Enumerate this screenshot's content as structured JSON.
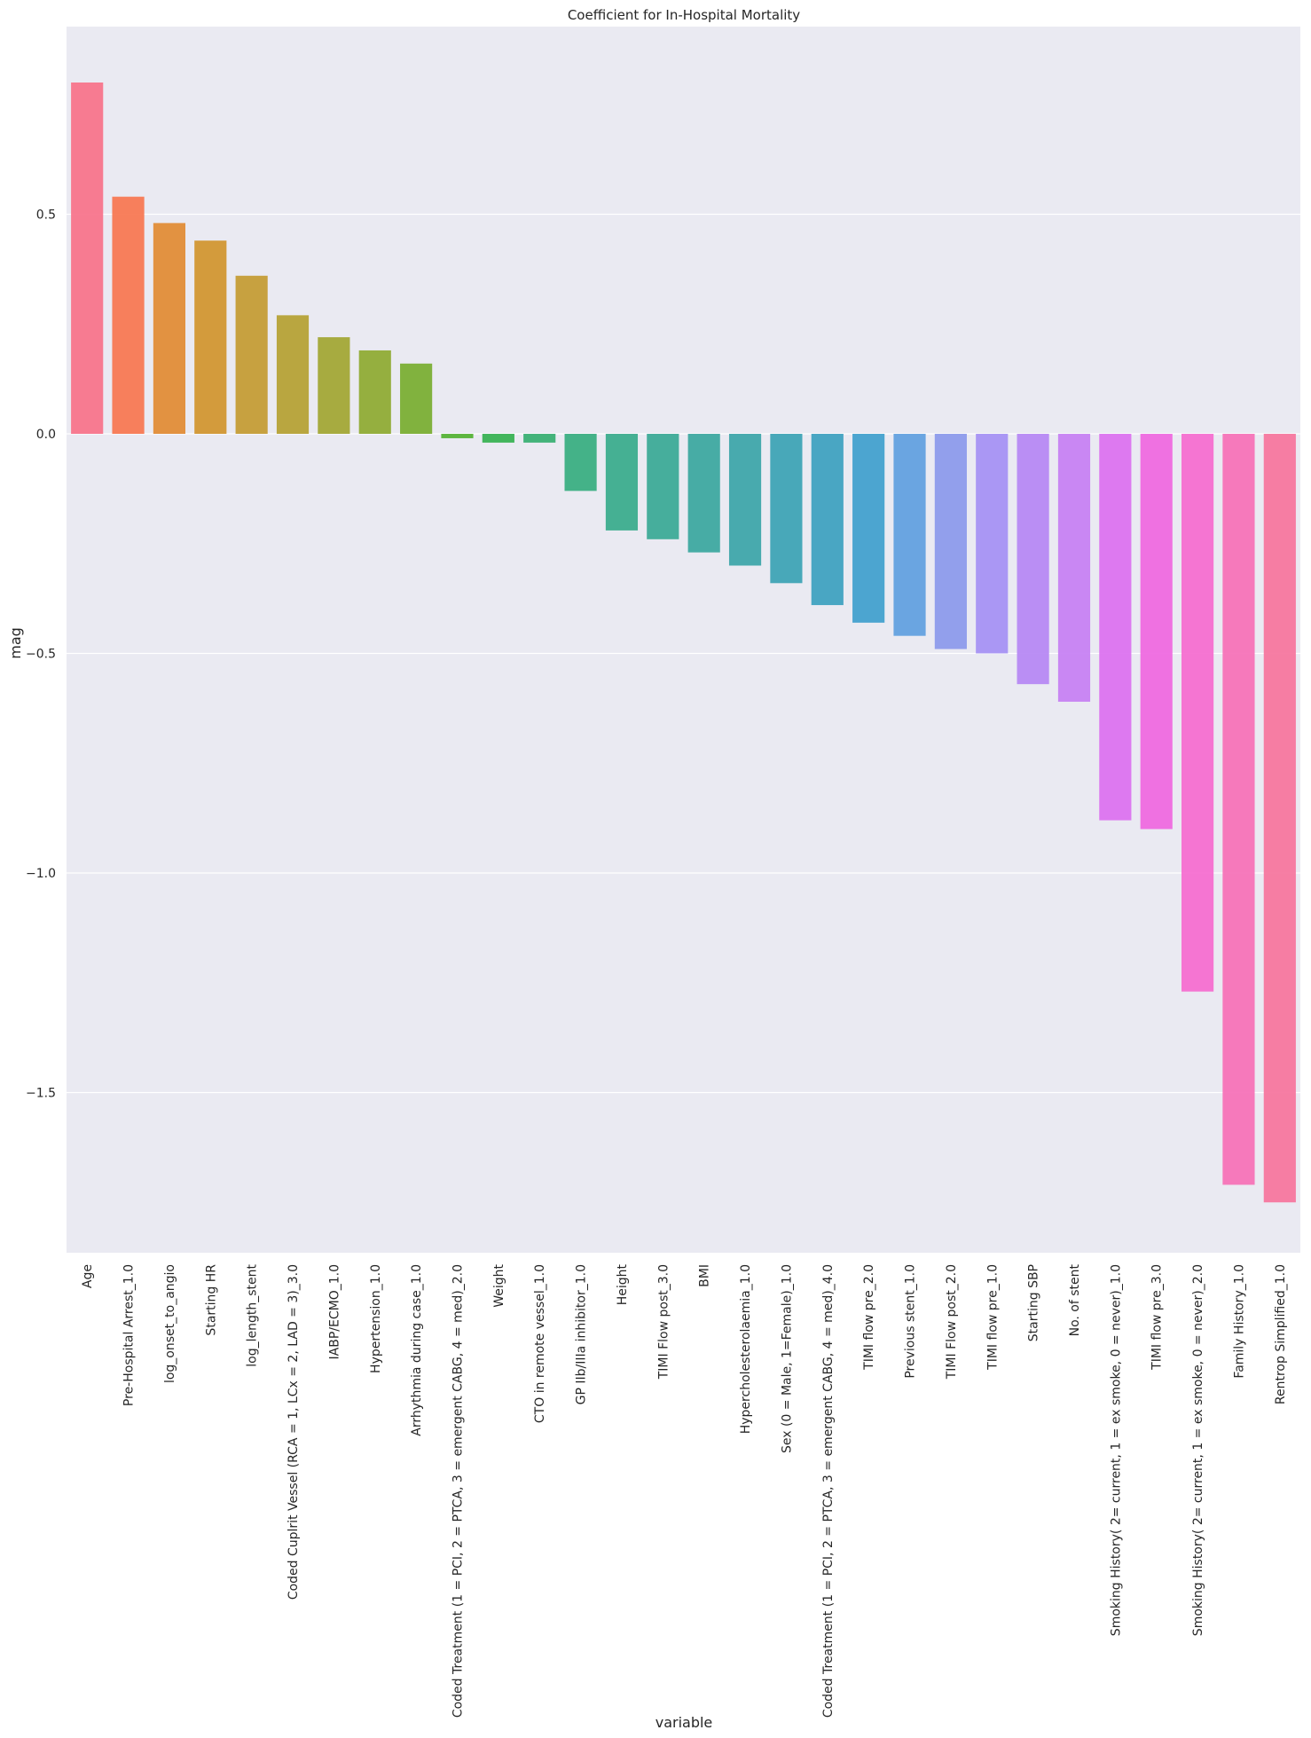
{
  "chart_data": {
    "type": "bar",
    "title": "Coefficient for In-Hospital Mortality",
    "xlabel": "variable",
    "ylabel": "mag",
    "ylim": [
      -1.87,
      0.95
    ],
    "yticks": [
      0.5,
      0.0,
      -0.5,
      -1.0,
      -1.5
    ],
    "ytick_labels": [
      "0.5",
      "0.0",
      "−0.5",
      "−1.0",
      "−1.5"
    ],
    "grid": true,
    "background": "#eaeaf2",
    "categories": [
      "Age",
      "Pre-Hospital Arrest_1.0",
      "log_onset_to_angio",
      "Starting HR",
      "log_length_stent",
      "Coded Cuplrit Vessel (RCA = 1, LCx = 2, LAD = 3)_3.0",
      "IABP/ECMO_1.0",
      "Hypertension_1.0",
      "Arrhythmia during case_1.0",
      "Coded Treatment (1 = PCI, 2 = PTCA, 3 = emergent CABG, 4 = med)_2.0",
      "Weight",
      "CTO in remote vessel_1.0",
      "GP IIb/IIIa inhibitor_1.0",
      "Height",
      "TIMI Flow post_3.0",
      "BMI",
      "Hypercholesterolaemia_1.0",
      "Sex (0 = Male, 1=Female)_1.0",
      "Coded Treatment (1 = PCI, 2 = PTCA, 3 = emergent CABG, 4 = med)_4.0",
      "TIMI flow pre_2.0",
      "Previous stent_1.0",
      "TIMI Flow post_2.0",
      "TIMI flow pre_1.0",
      "Starting SBP",
      "No. of stent",
      "Smoking History( 2= current, 1 = ex smoke, 0 = never)_1.0",
      "TIMI flow pre_3.0",
      "Smoking History( 2= current, 1 = ex smoke, 0 = never)_2.0",
      "Family History_1.0",
      "Rentrop Simplified_1.0"
    ],
    "values": [
      0.8,
      0.54,
      0.48,
      0.44,
      0.36,
      0.27,
      0.22,
      0.19,
      0.16,
      -0.01,
      -0.02,
      -0.02,
      -0.13,
      -0.22,
      -0.24,
      -0.27,
      -0.3,
      -0.34,
      -0.39,
      -0.43,
      -0.46,
      -0.49,
      -0.5,
      -0.57,
      -0.61,
      -0.88,
      -0.9,
      -1.27,
      -1.71,
      -1.75
    ],
    "colors": [
      "#f77189",
      "#f7754f",
      "#e18a32",
      "#d0942c",
      "#c39a31",
      "#b49f31",
      "#a1a531",
      "#8da930",
      "#77ad2f",
      "#50b131",
      "#33b04f",
      "#34ae70",
      "#35ac7f",
      "#36aa8b",
      "#37a895",
      "#38a69e",
      "#39a4a8",
      "#3aa2b4",
      "#3ba0bf",
      "#3e9ecd",
      "#5e9ee0",
      "#8a98eb",
      "#a48ff4",
      "#b586f4",
      "#c57ef3",
      "#db6ff0",
      "#ef66e0",
      "#f56acf",
      "#f66fb6",
      "#f6739c"
    ]
  }
}
